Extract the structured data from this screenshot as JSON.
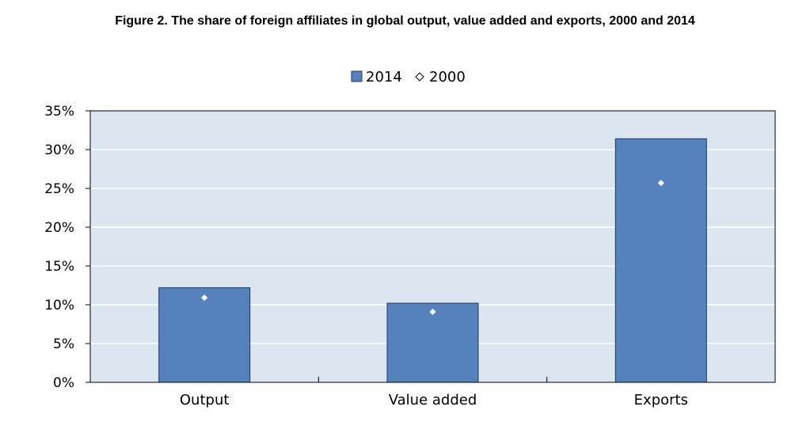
{
  "title": "Figure 2.  The share of foreign affiliates in global output, value added and exports, 2000 and 2014",
  "chart_data": {
    "type": "bar",
    "categories": [
      "Output",
      "Value added",
      "Exports"
    ],
    "series": [
      {
        "name": "2014",
        "kind": "bar",
        "values": [
          12.2,
          10.2,
          31.4
        ],
        "color": "#5582bd"
      },
      {
        "name": "2000",
        "kind": "marker",
        "values": [
          10.9,
          9.1,
          25.7
        ],
        "color": "#ffffff"
      }
    ],
    "yticks": [
      "0%",
      "5%",
      "10%",
      "15%",
      "20%",
      "25%",
      "30%",
      "35%"
    ],
    "ylim": [
      0,
      35
    ],
    "legend_position": "top",
    "plot_background": "#dce6f1",
    "grid": true
  }
}
